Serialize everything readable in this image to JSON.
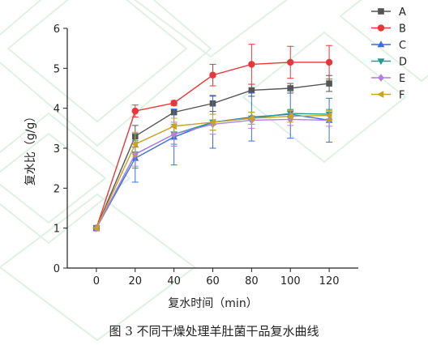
{
  "chart_data": {
    "type": "line",
    "title": "",
    "xlabel": "复水时间（min）",
    "ylabel": "复水比（g/g）",
    "xlim": [
      -15,
      135
    ],
    "ylim": [
      0,
      6
    ],
    "x": [
      0,
      20,
      40,
      60,
      80,
      100,
      120
    ],
    "x_ticks": [
      "0",
      "20",
      "40",
      "60",
      "80",
      "100",
      "120"
    ],
    "y_ticks": [
      "0",
      "1",
      "2",
      "3",
      "4",
      "5",
      "6"
    ],
    "grid": false,
    "legend_position": "top-right",
    "series": [
      {
        "name": "A",
        "color": "#555555",
        "marker": "square",
        "values": [
          1.0,
          3.3,
          3.9,
          4.12,
          4.45,
          4.5,
          4.62
        ],
        "errors": [
          0,
          0.27,
          0,
          0.2,
          0.15,
          0.12,
          0.2
        ]
      },
      {
        "name": "B",
        "color": "#e8373a",
        "marker": "circle",
        "values": [
          1.0,
          3.93,
          4.13,
          4.83,
          5.1,
          5.15,
          5.15
        ],
        "errors": [
          0,
          0.15,
          0.06,
          0.27,
          0.5,
          0.4,
          0.42
        ]
      },
      {
        "name": "C",
        "color": "#3a6fd8",
        "marker": "triangle-up",
        "values": [
          1.0,
          2.75,
          3.28,
          3.65,
          3.78,
          3.85,
          3.7
        ],
        "errors": [
          0,
          0.6,
          0.7,
          0.65,
          0.6,
          0.6,
          0.55
        ]
      },
      {
        "name": "D",
        "color": "#1e9e8a",
        "marker": "triangle-down",
        "values": [
          1.0,
          2.85,
          3.35,
          3.65,
          3.75,
          3.87,
          3.85
        ],
        "errors": [
          0,
          0.35,
          0.25,
          0.2,
          0.15,
          0.1,
          0.12
        ]
      },
      {
        "name": "E",
        "color": "#b27ee0",
        "marker": "diamond",
        "values": [
          1.0,
          2.85,
          3.35,
          3.6,
          3.7,
          3.72,
          3.7
        ],
        "errors": [
          0,
          0.3,
          0.3,
          0.25,
          0.2,
          0.15,
          0.15
        ]
      },
      {
        "name": "F",
        "color": "#c9a227",
        "marker": "triangle-left",
        "values": [
          1.0,
          3.1,
          3.55,
          3.65,
          3.75,
          3.8,
          3.82
        ],
        "errors": [
          0,
          0.3,
          0.2,
          0.2,
          0.15,
          0.15,
          0.12
        ]
      }
    ]
  },
  "caption": "图 3  不同干燥处理羊肚菌干品复水曲线"
}
